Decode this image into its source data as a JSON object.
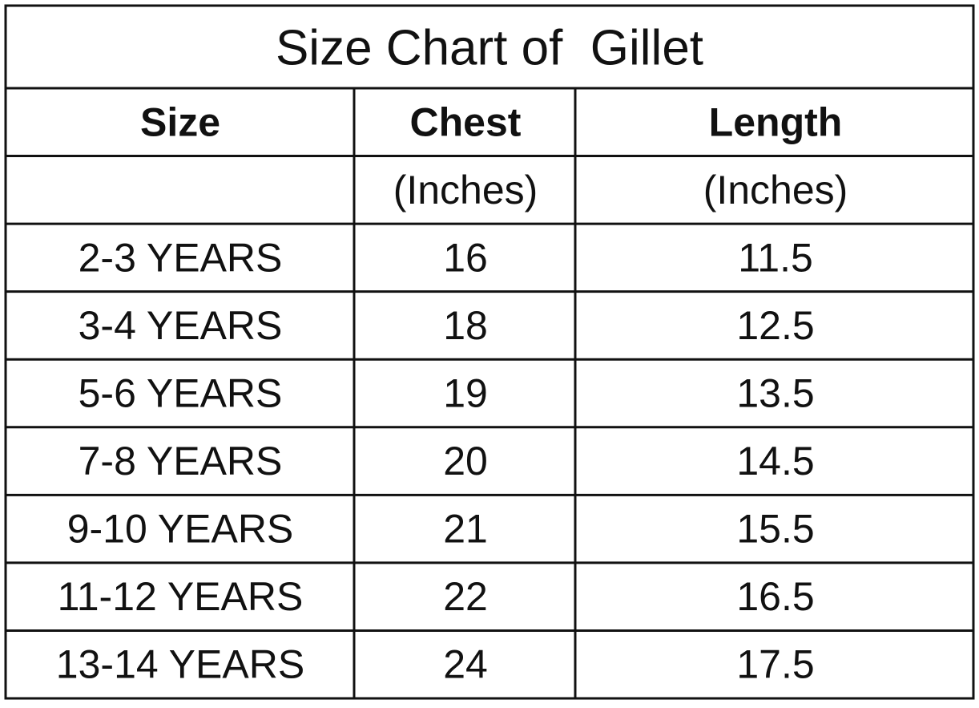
{
  "title": "Size Chart of  Gillet",
  "table": {
    "header": [
      "Size",
      "Chest",
      "Length"
    ],
    "units": {
      "chest": "(Inches)",
      "length": "(Inches)"
    },
    "rows": [
      [
        "2-3 YEARS",
        16,
        11.5
      ],
      [
        "3-4 YEARS",
        18,
        12.5
      ],
      [
        "5-6 YEARS",
        19,
        13.5
      ],
      [
        "7-8 YEARS",
        20,
        14.5
      ],
      [
        "9-10 YEARS",
        21,
        15.5
      ],
      [
        "11-12 YEARS",
        22,
        16.5
      ],
      [
        "13-14 YEARS",
        24,
        17.5
      ]
    ]
  }
}
